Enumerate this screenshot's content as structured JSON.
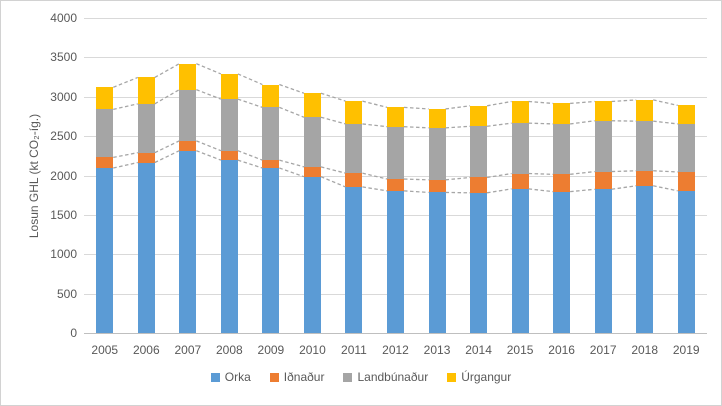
{
  "frame": {
    "background": "#FFFFFF",
    "border_color": "#D2D2D2",
    "text_color": "#595959"
  },
  "chart_data": {
    "type": "bar",
    "stacked": true,
    "title": "",
    "xlabel": "",
    "ylabel": "Losun GHL (kt CO₂-íg.)",
    "ylim": [
      0,
      4000
    ],
    "ytick_step": 500,
    "yticks": [
      "0",
      "500",
      "1000",
      "1500",
      "2000",
      "2500",
      "3000",
      "3500",
      "4000"
    ],
    "grid": true,
    "gridline_color": "#D9D9D9",
    "axis_line_color": "#BFBFBF",
    "legend_position": "bottom",
    "categories": [
      "2005",
      "2006",
      "2007",
      "2008",
      "2009",
      "2010",
      "2011",
      "2012",
      "2013",
      "2014",
      "2015",
      "2016",
      "2017",
      "2018",
      "2019"
    ],
    "series": [
      {
        "name": "Orka",
        "color": "#5B9BD5",
        "values": [
          2095,
          2165,
          2315,
          2195,
          2095,
          1985,
          1855,
          1805,
          1785,
          1780,
          1830,
          1795,
          1825,
          1870,
          1805
        ]
      },
      {
        "name": "Iðnaður",
        "color": "#ED7D31",
        "values": [
          135,
          125,
          125,
          120,
          100,
          125,
          175,
          150,
          160,
          195,
          195,
          220,
          225,
          190,
          240
        ]
      },
      {
        "name": "Landbúnaður",
        "color": "#A5A5A5",
        "values": [
          610,
          620,
          650,
          655,
          670,
          630,
          625,
          665,
          660,
          650,
          640,
          640,
          645,
          630,
          610
        ]
      },
      {
        "name": "Úrgangur",
        "color": "#FFC000",
        "values": [
          280,
          335,
          330,
          320,
          290,
          305,
          290,
          245,
          240,
          260,
          275,
          260,
          245,
          270,
          235
        ]
      }
    ],
    "totals": [
      3120,
      3245,
      3420,
      3290,
      3155,
      3045,
      2945,
      2865,
      2845,
      2885,
      2940,
      2915,
      2940,
      2960,
      2890
    ],
    "series_lines": {
      "show": true,
      "color": "#A6A6A6",
      "style": "dashed"
    }
  }
}
